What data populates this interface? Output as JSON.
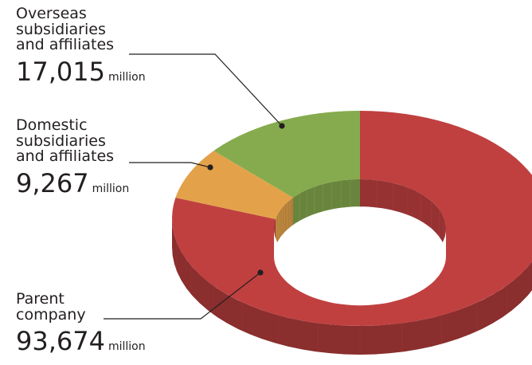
{
  "chart_data": {
    "type": "pie",
    "style": "3d-donut",
    "unit": "million",
    "slices": [
      {
        "label": "Parent company",
        "value": 93674,
        "value_text": "93,674",
        "color": "#c04040"
      },
      {
        "label": "Domestic subsidiaries and affiliates",
        "value": 9267,
        "value_text": "9,267",
        "color": "#e3a24a"
      },
      {
        "label": "Overseas subsidiaries and affiliates",
        "value": 17015,
        "value_text": "17,015",
        "color": "#86ab4e"
      }
    ]
  },
  "labels": {
    "overseas": {
      "name": "Overseas\nsubsidiaries\nand affiliates",
      "value": "17,015",
      "unit": "million"
    },
    "domestic": {
      "name": "Domestic\nsubsidiaries\nand affiliates",
      "value": "9,267",
      "unit": "million"
    },
    "parent": {
      "name": "Parent\ncompany",
      "value": "93,674",
      "unit": "million"
    }
  }
}
